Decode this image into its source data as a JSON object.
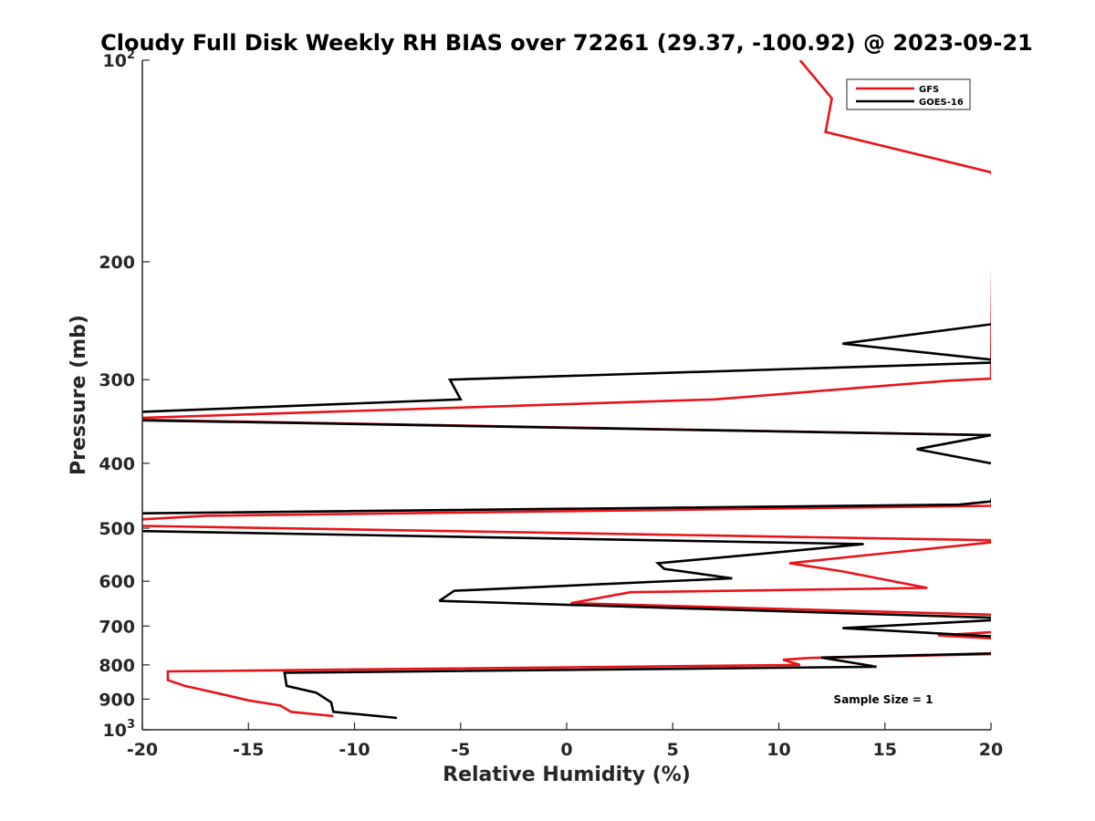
{
  "chart_data": {
    "type": "line",
    "title": "Cloudy Full Disk Weekly RH BIAS over 72261 (29.37, -100.92) @ 2023-09-21",
    "xlabel": "Relative Humidity (%)",
    "ylabel": "Pressure (mb)",
    "xlim": [
      -20,
      20
    ],
    "ylim": [
      100,
      1000
    ],
    "y_scale": "log",
    "y_reversed": true,
    "grid": false,
    "legend_position": "top-right",
    "x_ticks": [
      -20,
      -15,
      -10,
      -5,
      0,
      5,
      10,
      15,
      20
    ],
    "x_tick_labels": [
      "-20",
      "-15",
      "-10",
      "-5",
      "0",
      "5",
      "10",
      "15",
      "20"
    ],
    "y_ticks": [
      200,
      300,
      400,
      500,
      600,
      700,
      800,
      900
    ],
    "y_tick_labels": [
      "200",
      "300",
      "400",
      "500",
      "600",
      "700",
      "800",
      "900"
    ],
    "y_tick_exp": [
      {
        "value": 100,
        "base": "10",
        "exp": "2"
      },
      {
        "value": 1000,
        "base": "10",
        "exp": "3"
      }
    ],
    "annotation": "Sample Size = 1",
    "series": [
      {
        "name": "GFS",
        "color": "#e8141a",
        "points": [
          [
            11.0,
            100
          ],
          [
            12.5,
            114
          ],
          [
            12.2,
            128
          ],
          [
            20.0,
            147
          ],
          [
            20.1,
            150
          ],
          [
            20.0,
            299
          ],
          [
            18.0,
            301
          ],
          [
            7.0,
            321
          ],
          [
            -20.0,
            342
          ],
          [
            -21,
            344
          ],
          [
            20.0,
            363
          ],
          [
            21,
            364
          ],
          [
            20.0,
            463
          ],
          [
            -17.0,
            479
          ],
          [
            -20.0,
            485
          ],
          [
            -21,
            490
          ],
          [
            -20.0,
            496
          ],
          [
            20.0,
            521
          ],
          [
            21,
            523
          ],
          [
            20.0,
            525
          ],
          [
            15.0,
            545
          ],
          [
            10.5,
            564
          ],
          [
            13.0,
            580
          ],
          [
            17.0,
            614
          ],
          [
            3.0,
            623
          ],
          [
            0.2,
            647
          ],
          [
            20.0,
            673
          ],
          [
            21,
            677
          ],
          [
            20.0,
            715
          ],
          [
            17.5,
            723
          ],
          [
            20.0,
            730
          ],
          [
            20.2,
            740
          ],
          [
            20.0,
            771
          ],
          [
            11.5,
            781
          ],
          [
            10.2,
            786
          ],
          [
            11.0,
            800
          ],
          [
            -18.8,
            818
          ],
          [
            -18.8,
            843
          ],
          [
            -18.0,
            860
          ],
          [
            -16.3,
            884
          ],
          [
            -15.0,
            904
          ],
          [
            -13.5,
            920
          ],
          [
            -13.0,
            940
          ],
          [
            -11.0,
            954
          ]
        ]
      },
      {
        "name": "GOES-16",
        "color": "#000000",
        "points": [
          [
            20.0,
            244
          ],
          [
            21,
            246
          ],
          [
            20.0,
            248
          ],
          [
            13.0,
            265
          ],
          [
            20.0,
            280
          ],
          [
            21,
            282
          ],
          [
            20.0,
            283
          ],
          [
            -5.5,
            300
          ],
          [
            -5.0,
            321
          ],
          [
            -20.0,
            335
          ],
          [
            -21,
            340
          ],
          [
            -20.0,
            345
          ],
          [
            20.0,
            363
          ],
          [
            16.5,
            381
          ],
          [
            20.0,
            400
          ],
          [
            20.5,
            402
          ],
          [
            20.0,
            456
          ],
          [
            18.5,
            461
          ],
          [
            -20.0,
            475
          ],
          [
            -21,
            490
          ],
          [
            -20.0,
            505
          ],
          [
            14.0,
            528
          ],
          [
            10.0,
            543
          ],
          [
            4.3,
            564
          ],
          [
            4.6,
            575
          ],
          [
            7.8,
            594
          ],
          [
            -5.3,
            620
          ],
          [
            -6.0,
            642
          ],
          [
            20.0,
            680
          ],
          [
            21,
            683
          ],
          [
            20.0,
            686
          ],
          [
            13.0,
            705
          ],
          [
            20.0,
            725
          ],
          [
            21,
            727
          ],
          [
            20.0,
            769
          ],
          [
            12.0,
            780
          ],
          [
            14.6,
            805
          ],
          [
            -13.3,
            822
          ],
          [
            -13.2,
            860
          ],
          [
            -11.8,
            880
          ],
          [
            -11.1,
            910
          ],
          [
            -11.0,
            940
          ],
          [
            -8.0,
            960
          ]
        ]
      }
    ]
  }
}
